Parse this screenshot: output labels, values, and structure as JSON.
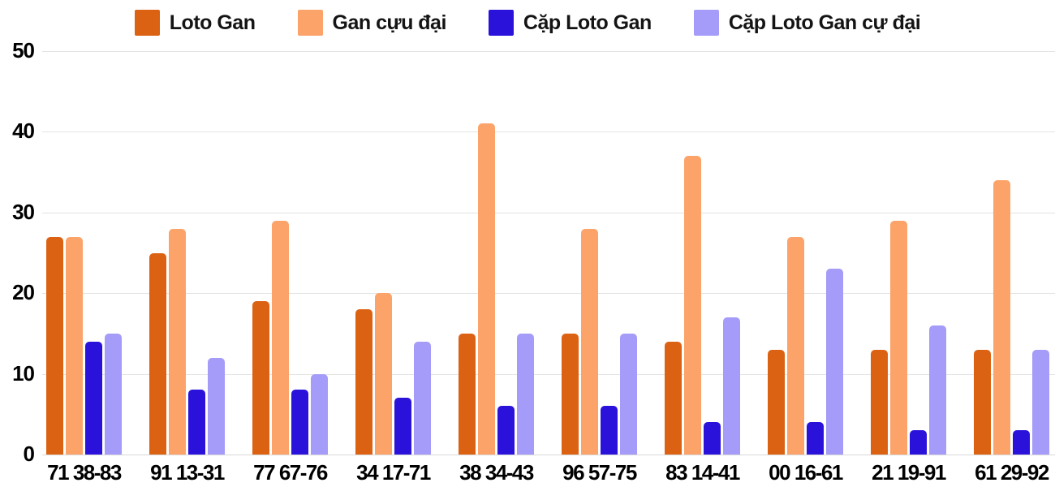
{
  "chart_data": {
    "type": "bar",
    "title": "",
    "xlabel": "",
    "ylabel": "",
    "ylim": [
      0,
      50
    ],
    "yticks": [
      0,
      10,
      20,
      30,
      40,
      50
    ],
    "grid": true,
    "legend_position": "top",
    "categories": [
      "71 38-83",
      "91 13-31",
      "77 67-76",
      "34 17-71",
      "38 34-43",
      "96 57-75",
      "83 14-41",
      "00 16-61",
      "21 19-91",
      "61 29-92"
    ],
    "series": [
      {
        "name": "Loto Gan",
        "color": "#dc6213",
        "values": [
          27,
          25,
          19,
          18,
          15,
          15,
          14,
          13,
          13,
          13
        ]
      },
      {
        "name": "Gan cựu đại",
        "color": "#fca36a",
        "values": [
          27,
          28,
          29,
          20,
          41,
          28,
          37,
          27,
          29,
          34
        ]
      },
      {
        "name": "Cặp Loto Gan",
        "color": "#2a12db",
        "values": [
          14,
          8,
          8,
          7,
          6,
          6,
          4,
          4,
          3,
          3
        ]
      },
      {
        "name": "Cặp Loto Gan cự đại",
        "color": "#a49cf8",
        "values": [
          15,
          12,
          10,
          14,
          15,
          15,
          17,
          23,
          16,
          13
        ]
      }
    ],
    "colors": {
      "gridline": "#e3e3e3",
      "baseline": "#d8d8d8",
      "tick_text": "#000000",
      "legend_text": "#141414",
      "background": "#ffffff"
    }
  }
}
